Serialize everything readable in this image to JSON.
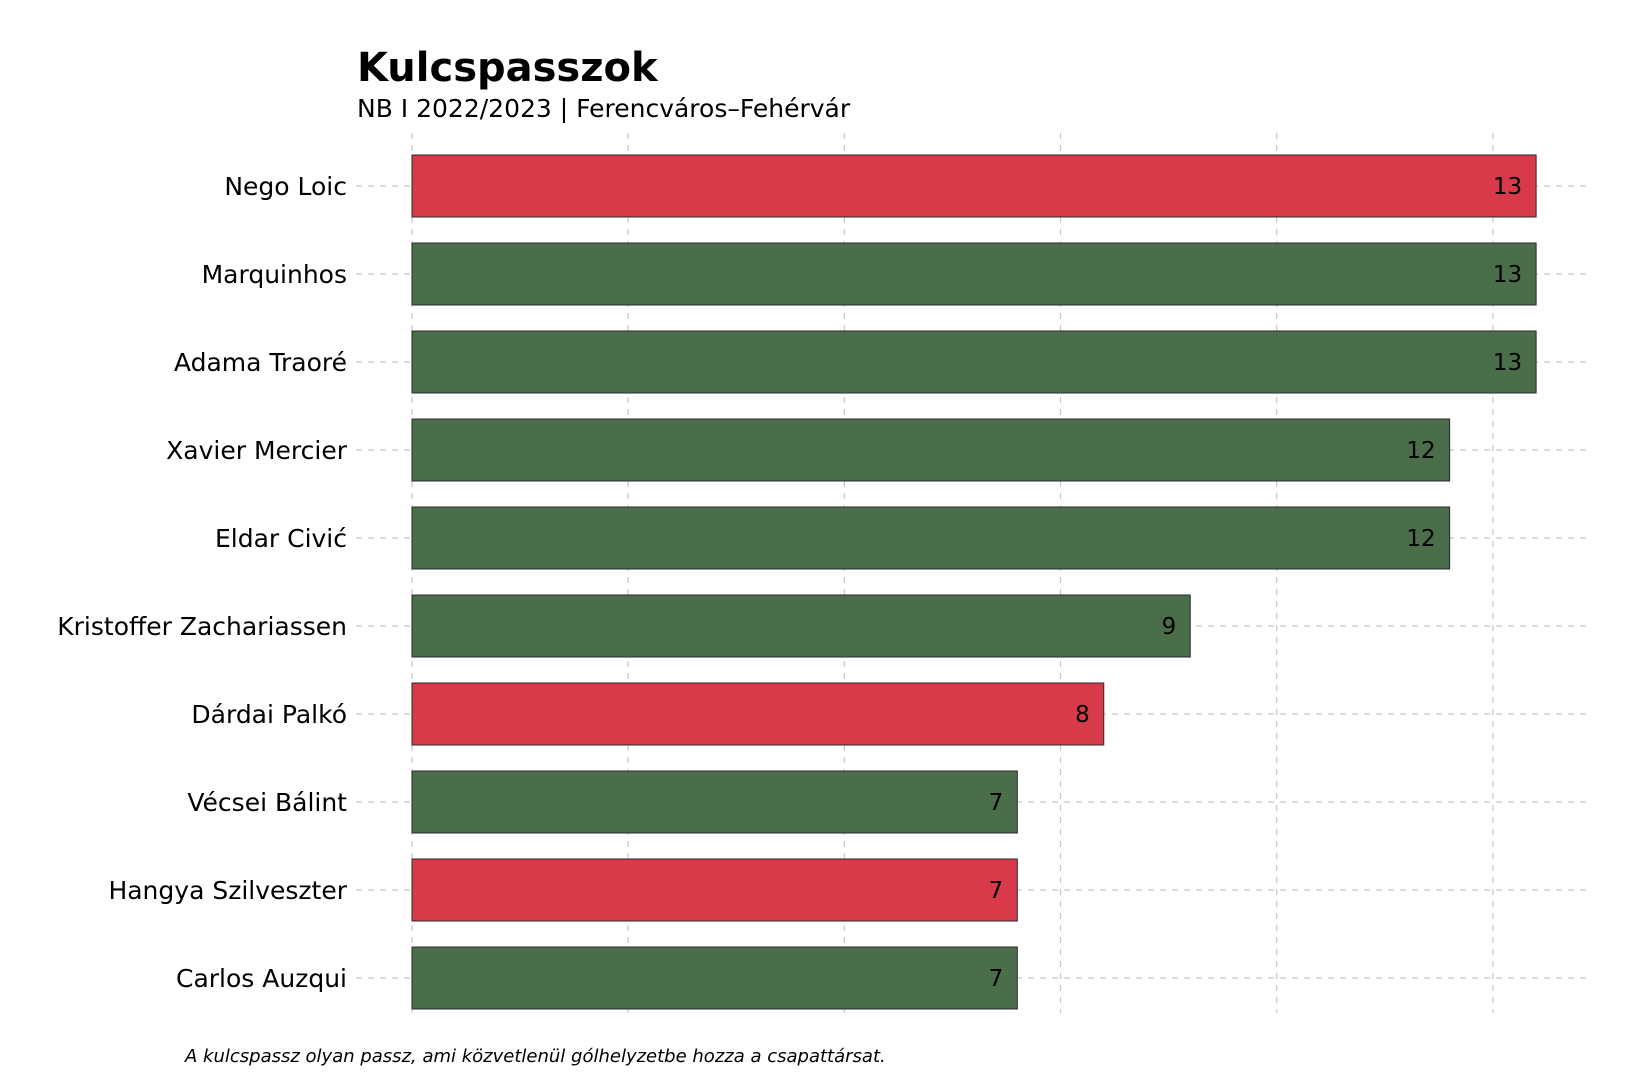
{
  "chart_data": {
    "type": "bar",
    "orientation": "horizontal",
    "title": "Kulcspasszok",
    "subtitle": "NB I 2022/2023 | Ferencváros–Fehérvár",
    "footnote": "A kulcspassz olyan passz, ami közvetlenül gólhelyzetbe hozza a csapattársat.",
    "xlim": [
      0,
      13.6
    ],
    "grid": true,
    "x_ticks_labeled": false,
    "colors": {
      "red": "#d93a4a",
      "green": "#4a6e4a"
    },
    "categories": [
      "Nego Loic",
      "Marquinhos",
      "Adama Traoré",
      "Xavier Mercier",
      "Eldar Civić",
      "Kristoffer Zachariassen",
      "Dárdai Palkó",
      "Vécsei Bálint",
      "Hangya Szilveszter",
      "Carlos Auzqui"
    ],
    "values": [
      13,
      13,
      13,
      12,
      12,
      9,
      8,
      7,
      7,
      7
    ],
    "bar_colors": [
      "red",
      "green",
      "green",
      "green",
      "green",
      "green",
      "red",
      "green",
      "red",
      "green"
    ]
  }
}
